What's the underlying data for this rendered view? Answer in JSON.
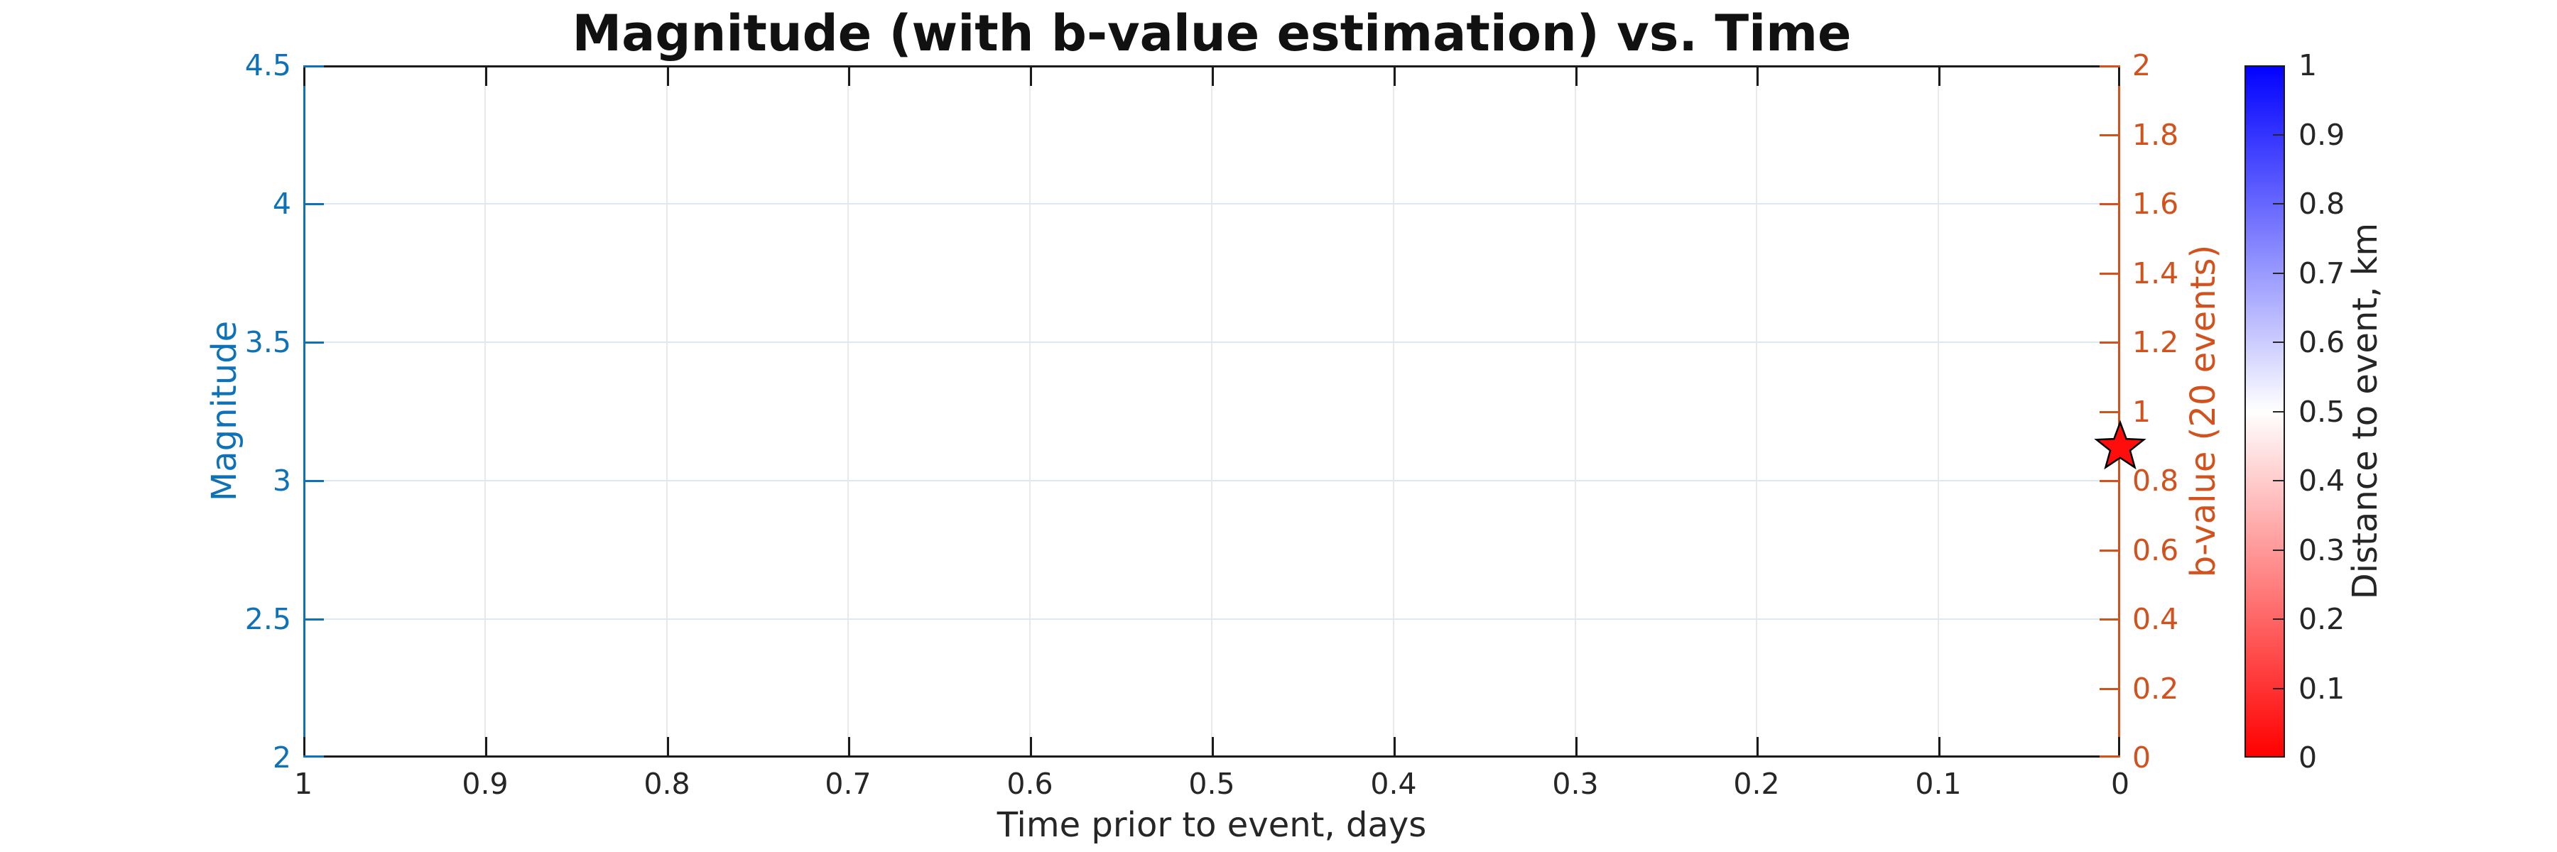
{
  "figure": {
    "title": "Magnitude (with b-value estimation) vs. Time"
  },
  "chart_data": {
    "type": "scatter",
    "title": "Magnitude (with b-value estimation) vs. Time",
    "xlabel": "Time prior to event, days",
    "grid": true,
    "legend": null,
    "x_axis": {
      "range": [
        1,
        0
      ],
      "direction": "reversed",
      "tick_labels": [
        "1",
        "0.9",
        "0.8",
        "0.7",
        "0.6",
        "0.5",
        "0.4",
        "0.3",
        "0.2",
        "0.1",
        "0"
      ],
      "color": "#262626"
    },
    "left_y_axis": {
      "label": "Magnitude",
      "range": [
        2,
        4.5
      ],
      "tick_labels": [
        "2",
        "2.5",
        "3",
        "3.5",
        "4",
        "4.5"
      ],
      "color": "#0F72B6"
    },
    "right_y_axis": {
      "label": "b-value (20 events)",
      "range": [
        0,
        2
      ],
      "tick_labels": [
        "0",
        "0.2",
        "0.4",
        "0.6",
        "0.8",
        "1",
        "1.2",
        "1.4",
        "1.6",
        "1.8",
        "2"
      ],
      "color": "#D2521E"
    },
    "colorbar": {
      "label": "Distance to event, km",
      "range": [
        0,
        1
      ],
      "tick_labels": [
        "0",
        "0.1",
        "0.2",
        "0.3",
        "0.4",
        "0.5",
        "0.6",
        "0.7",
        "0.8",
        "0.9",
        "1"
      ],
      "colormap": [
        "#FF0000",
        "#FFFFFF",
        "#0202FF"
      ],
      "label_color": "#262626"
    },
    "series": [
      {
        "name": "b-value estimate marker",
        "marker": "star",
        "points": [
          {
            "x": 0,
            "b_value": 0.9,
            "magnitude_equivalent": 3.12
          }
        ],
        "fill": "#FF0D0D",
        "edge": "#000000"
      }
    ]
  }
}
